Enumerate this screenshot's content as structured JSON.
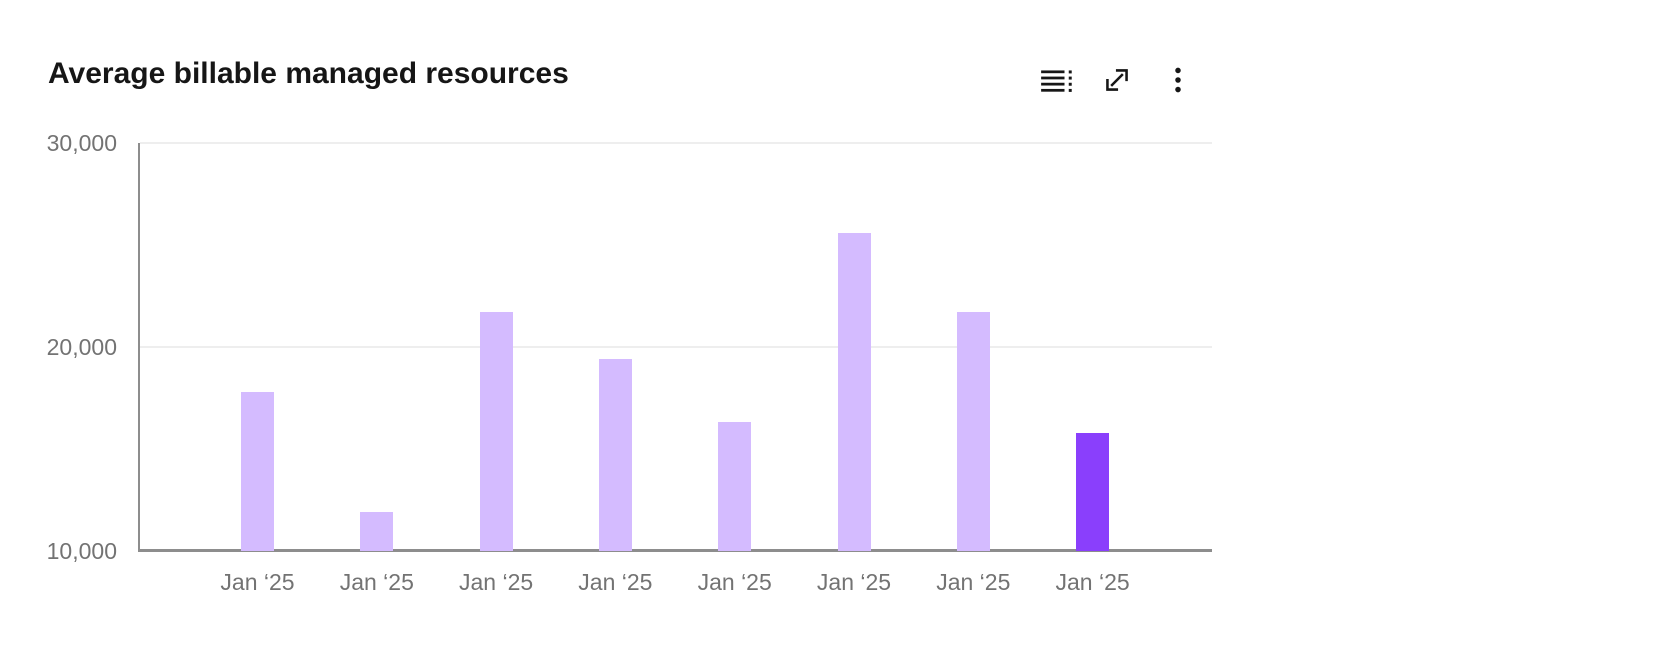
{
  "header": {
    "title": "Average billable managed resources",
    "toolbar": {
      "icons": [
        "data-table-icon",
        "expand-icon",
        "overflow-menu-icon"
      ]
    }
  },
  "chart_data": {
    "type": "bar",
    "title": "Average billable managed resources",
    "categories": [
      "Jan ‘25",
      "Jan ‘25",
      "Jan ‘25",
      "Jan ‘25",
      "Jan ‘25",
      "Jan ‘25",
      "Jan ‘25",
      "Jan ‘25"
    ],
    "values": [
      17800,
      11900,
      21700,
      19400,
      16300,
      25600,
      21700,
      15800
    ],
    "highlighted_index": 7,
    "ylim": [
      10000,
      30000
    ],
    "y_ticks": [
      10000,
      20000,
      30000
    ],
    "y_tick_labels": [
      "10,000",
      "20,000",
      "30,000"
    ],
    "xlabel": "",
    "ylabel": "",
    "legend": "none",
    "grid": "horizontal gridlines at 20,000 and 30,000"
  },
  "colors": {
    "background": "#ffffff",
    "title_text": "#161616",
    "icon": "#161616",
    "bar_light": "#d4bbff",
    "bar_highlight": "#8a3ffc",
    "axis_line": "#8d8d8d",
    "gridline": "#eeeeee",
    "tick_label": "#737373"
  }
}
